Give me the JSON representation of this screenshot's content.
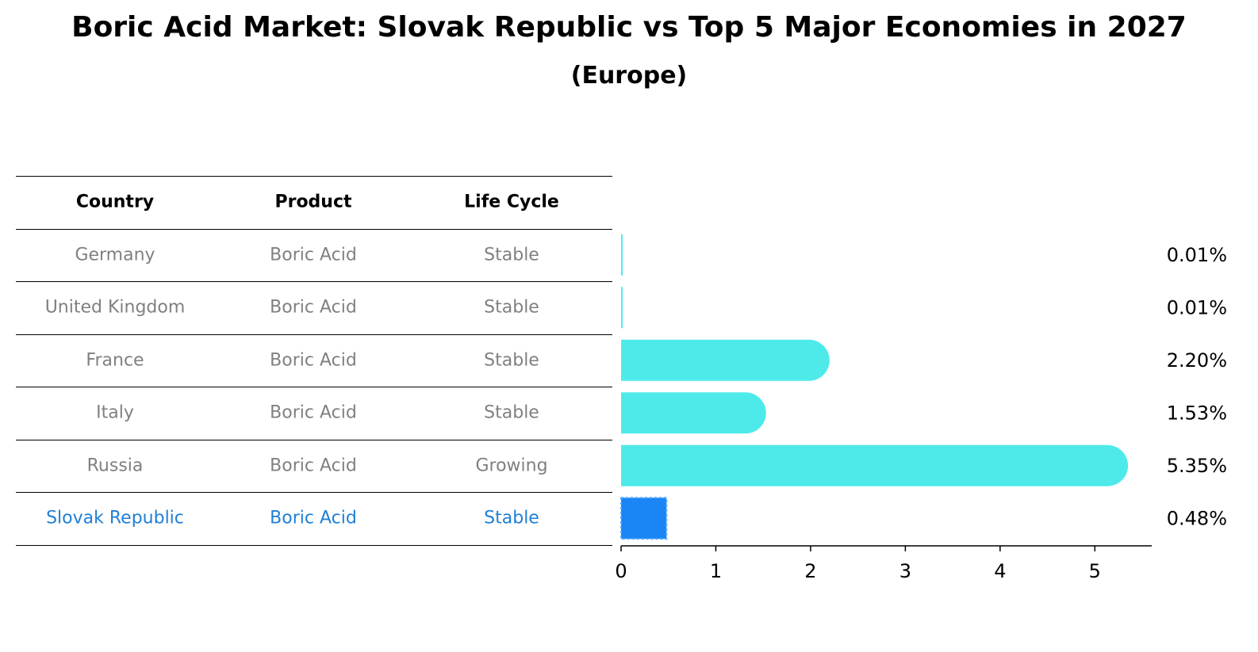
{
  "title": "Boric Acid Market: Slovak Republic vs Top 5 Major Economies in 2027",
  "subtitle": "(Europe)",
  "table": {
    "headers": [
      "Country",
      "Product",
      "Life Cycle"
    ],
    "rows": [
      {
        "country": "Germany",
        "product": "Boric Acid",
        "life_cycle": "Stable"
      },
      {
        "country": "United Kingdom",
        "product": "Boric Acid",
        "life_cycle": "Stable"
      },
      {
        "country": "France",
        "product": "Boric Acid",
        "life_cycle": "Stable"
      },
      {
        "country": "Italy",
        "product": "Boric Acid",
        "life_cycle": "Stable"
      },
      {
        "country": "Russia",
        "product": "Boric Acid",
        "life_cycle": "Growing"
      },
      {
        "country": "Slovak Republic",
        "product": "Boric Acid",
        "life_cycle": "Stable"
      }
    ]
  },
  "chart_data": {
    "type": "bar",
    "orientation": "horizontal",
    "categories": [
      "Germany",
      "United Kingdom",
      "France",
      "Italy",
      "Russia",
      "Slovak Republic"
    ],
    "values": [
      0.01,
      0.01,
      2.2,
      1.53,
      5.35,
      0.48
    ],
    "value_labels": [
      "0.01%",
      "0.01%",
      "2.20%",
      "1.53%",
      "5.35%",
      "0.48%"
    ],
    "highlight": "Slovak Republic",
    "xlim": [
      0,
      5.6
    ],
    "xticks": [
      0,
      1,
      2,
      3,
      4,
      5
    ],
    "colors": {
      "default": "#4eeaea",
      "highlight": "#1a86f5",
      "table_highlight_text": "#1f7fd6"
    }
  }
}
